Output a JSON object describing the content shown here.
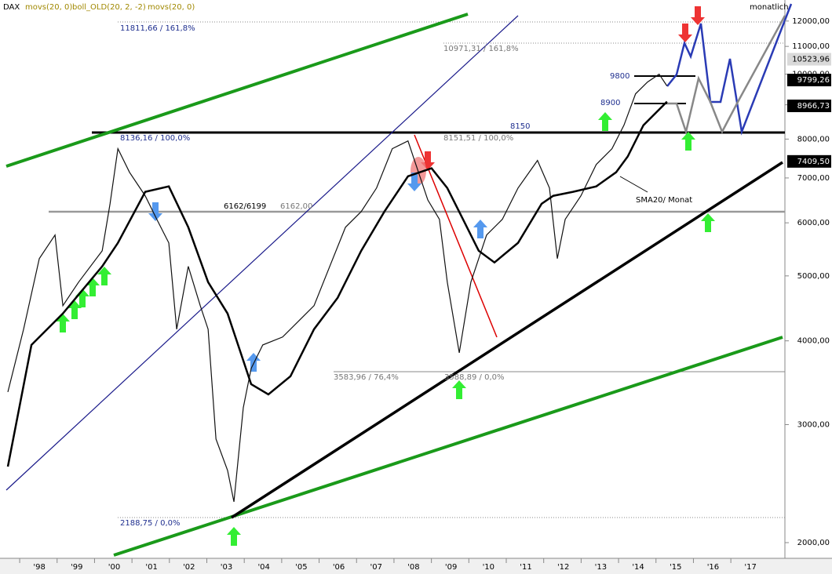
{
  "chart_data": {
    "type": "line",
    "header": [
      "DAX",
      "movs(20, 0)",
      "boll_OLD(20, 2, -2)",
      "movs(20, 0)"
    ],
    "period": "monatlich",
    "log_y": true,
    "grid": false,
    "xlim": [
      1996.95,
      2017.92
    ],
    "xticks": [
      {
        "value": 1998,
        "label": "'98"
      },
      {
        "value": 1999,
        "label": "'99"
      },
      {
        "value": 2000,
        "label": "'00"
      },
      {
        "value": 2001,
        "label": "'01"
      },
      {
        "value": 2002,
        "label": "'02"
      },
      {
        "value": 2003,
        "label": "'03"
      },
      {
        "value": 2004,
        "label": "'04"
      },
      {
        "value": 2005,
        "label": "'05"
      },
      {
        "value": 2006,
        "label": "'06"
      },
      {
        "value": 2007,
        "label": "'07"
      },
      {
        "value": 2008,
        "label": "'08"
      },
      {
        "value": 2009,
        "label": "'09"
      },
      {
        "value": 2010,
        "label": "'10"
      },
      {
        "value": 2011,
        "label": "'11"
      },
      {
        "value": 2012,
        "label": "'12"
      },
      {
        "value": 2013,
        "label": "'13"
      },
      {
        "value": 2014,
        "label": "'14"
      },
      {
        "value": 2015,
        "label": "'15"
      },
      {
        "value": 2016,
        "label": "'16"
      },
      {
        "value": 2017,
        "label": "'17"
      }
    ],
    "ylim": [
      1895,
      12900
    ],
    "yticks": [
      {
        "value": 2000,
        "label": "2000,00"
      },
      {
        "value": 3000,
        "label": "3000,00"
      },
      {
        "value": 4000,
        "label": "4000,00"
      },
      {
        "value": 5000,
        "label": "5000,00"
      },
      {
        "value": 6000,
        "label": "6000,00"
      },
      {
        "value": 7000,
        "label": "7000,00"
      },
      {
        "value": 8000,
        "label": "8000,00"
      },
      {
        "value": 9000,
        "label": "9000,00"
      },
      {
        "value": 10000,
        "label": "10000,00"
      },
      {
        "value": 11000,
        "label": "11000,00"
      },
      {
        "value": 12000,
        "label": "12000,00"
      }
    ],
    "series": [
      {
        "color": "#111111",
        "x": [
          1997.16,
          1997.58,
          1998.0,
          1998.42,
          1998.63,
          1999.05,
          1999.68,
          1999.89,
          2000.1,
          2000.41,
          2000.83,
          2001.14,
          2001.46,
          2001.67,
          2001.98,
          2002.3,
          2002.51,
          2002.72,
          2003.03,
          2003.2,
          2003.45,
          2003.66,
          2003.97,
          2004.5,
          2004.92,
          2005.34,
          2005.76,
          2006.18,
          2006.6,
          2007.01,
          2007.43,
          2007.85,
          2008.06,
          2008.38,
          2008.69,
          2008.9,
          2009.22,
          2009.53,
          2009.95,
          2010.37,
          2010.79,
          2011.31,
          2011.63,
          2011.84,
          2012.05,
          2012.47,
          2012.88,
          2013.3,
          2013.62,
          2013.93,
          2014.25,
          2014.56,
          2014.77
        ],
        "values": [
          3356,
          4163,
          5306,
          5754,
          4514,
          4894,
          5450,
          6406,
          7740,
          7138,
          6583,
          6072,
          5600,
          4163,
          5166,
          4514,
          4163,
          2855,
          2563,
          2301,
          3180,
          3638,
          3944,
          4053,
          4277,
          4514,
          5166,
          5910,
          6236,
          6762,
          7740,
          7950,
          7332,
          6490,
          6072,
          4894,
          3839,
          4894,
          5754,
          6072,
          6762,
          7434,
          6762,
          5306,
          6072,
          6583,
          7332,
          7740,
          8390,
          9346,
          9732,
          9998,
          9602
        ]
      },
      {
        "color": "#000000",
        "x": [
          1997.16,
          1997.79,
          1998.63,
          1999.68,
          2000.1,
          2000.83,
          2001.46,
          2001.98,
          2002.51,
          2003.03,
          2003.24,
          2003.66,
          2004.12,
          2004.71,
          2005.34,
          2005.97,
          2006.6,
          2007.22,
          2007.85,
          2008.48,
          2008.9,
          2009.32,
          2009.74,
          2010.16,
          2010.79,
          2011.42,
          2011.73,
          2012.26,
          2012.88,
          2013.41,
          2013.72,
          2014.14,
          2014.77
        ],
        "values": [
          2597,
          3944,
          4394,
          5166,
          5600,
          6674,
          6800,
          5910,
          4894,
          4394,
          4053,
          3447,
          3328,
          3542,
          4163,
          4637,
          5450,
          6236,
          7041,
          7236,
          6762,
          6072,
          5450,
          5236,
          5600,
          6406,
          6583,
          6674,
          6800,
          7138,
          7534,
          8390,
          9098
        ]
      }
    ],
    "price_labels": [
      {
        "value": 10523.96,
        "label": "10523,96",
        "bg": "#d9d9d9",
        "fg": "#000000"
      },
      {
        "value": 9799.26,
        "label": "9799,26",
        "bg": "#000000",
        "fg": "#ffffff"
      },
      {
        "value": 8966.73,
        "label": "8966,73",
        "bg": "#000000",
        "fg": "#ffffff"
      },
      {
        "value": 7409.5,
        "label": "7409,50",
        "bg": "#000000",
        "fg": "#ffffff"
      }
    ],
    "annotations": [
      "11811,66 / 161,8%",
      "10971,31 / 161,8%",
      "8136,16 / 100,0%",
      "8151,51 / 100,0%",
      "8150",
      "6162/6199",
      "6162,00",
      "3583,96 / 76,4%",
      "3588,89 / 0,0%",
      "2188,75 / 0,0%",
      "9800",
      "8900",
      "SMA20/ Monat"
    ]
  }
}
